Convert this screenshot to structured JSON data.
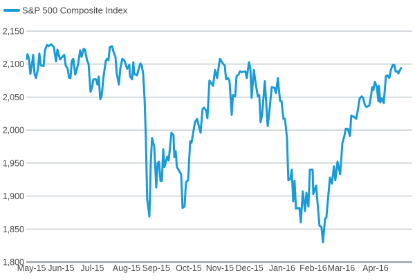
{
  "chart_data": {
    "type": "line",
    "title": "",
    "legend": {
      "position": "top-left",
      "entries": [
        "S&P 500 Composite Index"
      ]
    },
    "xlabel": "",
    "ylabel": "",
    "x_unit": "trading day index",
    "xlim": [
      -0.4,
      247.6
    ],
    "ylim": [
      1800,
      2150
    ],
    "grid": true,
    "yticks": [
      1800,
      1850,
      1900,
      1950,
      2000,
      2050,
      2100,
      2150
    ],
    "ytick_labels": [
      "1,800",
      "1,850",
      "1,900",
      "1,950",
      "2,000",
      "2,050",
      "2,100",
      "2,150"
    ],
    "xticks": [
      {
        "label": "May-15",
        "x": 3
      },
      {
        "label": "Jun-15",
        "x": 22
      },
      {
        "label": "Jul-15",
        "x": 42
      },
      {
        "label": "Aug-15",
        "x": 64
      },
      {
        "label": "Sep-15",
        "x": 83
      },
      {
        "label": "Oct-15",
        "x": 104
      },
      {
        "label": "Nov-15",
        "x": 124
      },
      {
        "label": "Dec-15",
        "x": 143
      },
      {
        "label": "Jan-16",
        "x": 164
      },
      {
        "label": "Feb-16",
        "x": 184
      },
      {
        "label": "Mar-16",
        "x": 202
      },
      {
        "label": "Apr-16",
        "x": 224
      }
    ],
    "series": [
      {
        "name": "S&P 500 Composite Index",
        "color": "#1a9bd7",
        "x": [
          0,
          0.4,
          1.3,
          2.2,
          3.6,
          4,
          4.9,
          5.8,
          7.1,
          8,
          8.9,
          10.7,
          11.6,
          12.9,
          13.8,
          15.6,
          17.3,
          18.7,
          19.6,
          21.3,
          22.7,
          24,
          24.9,
          26.2,
          27.1,
          28,
          28.9,
          29.8,
          31.1,
          32.9,
          34.2,
          35.1,
          36.4,
          37.3,
          38.7,
          39.6,
          40.9,
          41.8,
          42.7,
          44.4,
          45.3,
          46.2,
          47.1,
          48,
          49.3,
          50.7,
          51.6,
          52.4,
          53.3,
          54.7,
          55.6,
          56.9,
          57.8,
          59.1,
          60,
          61.3,
          62.7,
          64.4,
          65.8,
          66.2,
          67.6,
          68.4,
          68.9,
          70.7,
          72.9,
          73.8,
          74.7,
          75.6,
          76.4,
          77.3,
          78.7,
          79.6,
          80.4,
          81.8,
          83.1,
          84,
          84.9,
          85.8,
          86.7,
          87.6,
          88.4,
          90.2,
          91.1,
          92.9,
          94.2,
          94.7,
          95.6,
          96.4,
          99.1,
          100,
          101.3,
          102.2,
          103.6,
          104.9,
          105.8,
          108,
          109.3,
          111.6,
          112.9,
          113.8,
          115.1,
          116,
          117.3,
          119.6,
          120.9,
          122.2,
          124,
          126.2,
          127.1,
          128,
          129.3,
          130.2,
          131.6,
          132.4,
          133.8,
          134.7,
          136,
          136.9,
          138.2,
          140.4,
          141.3,
          142.7,
          143.6,
          144.4,
          145.8,
          147.1,
          148.4,
          149.3,
          150.2,
          151.1,
          152.9,
          154.7,
          156,
          157.3,
          159.1,
          160,
          161.3,
          161.8,
          162.7,
          163.6,
          164.9,
          165.8,
          167.1,
          168,
          169.3,
          170.2,
          171.1,
          172,
          172.9,
          175.1,
          176,
          177.3,
          178.7,
          179.6,
          180.9,
          181.8,
          183.6,
          184,
          185.8,
          188,
          189.3,
          190.2,
          191.6,
          192.4,
          194.7,
          196,
          197.3,
          198.2,
          199.6,
          201.3,
          202.7,
          204,
          204.9,
          206.2,
          207.6,
          208.4,
          210.2,
          211.6,
          212.4,
          213.8,
          215.1,
          216,
          217.3,
          218.2,
          220,
          221.3,
          221.8,
          222.7,
          223.6,
          224.9,
          225.8,
          226.2,
          227.1,
          228,
          229.3,
          230.7,
          231.6,
          232.9,
          233.8,
          235.1,
          236,
          236.9,
          237.8,
          238.7,
          240.4
        ],
        "values": [
          2108,
          2115,
          2108,
          2085,
          2106,
          2114,
          2085,
          2079,
          2093,
          2116,
          2098,
          2097,
          2121,
          2129,
          2127,
          2130,
          2126,
          2104,
          2122,
          2107,
          2111,
          2114,
          2098,
          2093,
          2079,
          2079,
          2105,
          2108,
          2084,
          2100,
          2121,
          2111,
          2123,
          2122,
          2105,
          2101,
          2058,
          2064,
          2077,
          2077,
          2069,
          2081,
          2047,
          2051,
          2082,
          2105,
          2108,
          2106,
          2126,
          2127,
          2119,
          2111,
          2085,
          2069,
          2093,
          2108,
          2105,
          2093,
          2099,
          2082,
          2077,
          2103,
          2085,
          2083,
          2101,
          2098,
          2085,
          2048,
          1991,
          1895,
          1869,
          1950,
          1988,
          1975,
          1913,
          1950,
          1952,
          1923,
          1923,
          1971,
          1944,
          1960,
          1954,
          1996,
          1992,
          1959,
          1968,
          1944,
          1933,
          1882,
          1884,
          1921,
          1924,
          1983,
          1981,
          2012,
          2017,
          1996,
          2032,
          2034,
          2030,
          2018,
          2075,
          2067,
          2091,
          2079,
          2108,
          2100,
          2098,
          2077,
          2079,
          2074,
          2023,
          2053,
          2051,
          2082,
          2084,
          2089,
          2088,
          2089,
          2079,
          2103,
          2093,
          2049,
          2091,
          2069,
          2051,
          2053,
          2012,
          2023,
          2074,
          2006,
          2033,
          2065,
          2064,
          2056,
          2079,
          2065,
          2044,
          2044,
          2017,
          2017,
          1988,
          1924,
          1926,
          1940,
          1892,
          1923,
          1881,
          1882,
          1860,
          1907,
          1877,
          1905,
          1884,
          1940,
          1940,
          1903,
          1916,
          1855,
          1853,
          1830,
          1866,
          1867,
          1928,
          1919,
          1945,
          1924,
          1952,
          1933,
          1980,
          1991,
          2002,
          2002,
          1991,
          2022,
          2020,
          2017,
          2027,
          2048,
          2051,
          2049,
          2037,
          2035,
          2037,
          2054,
          2065,
          2061,
          2073,
          2065,
          2044,
          2067,
          2042,
          2048,
          2041,
          2082,
          2083,
          2079,
          2091,
          2099,
          2099,
          2089,
          2089,
          2086,
          2094
        ]
      }
    ]
  }
}
